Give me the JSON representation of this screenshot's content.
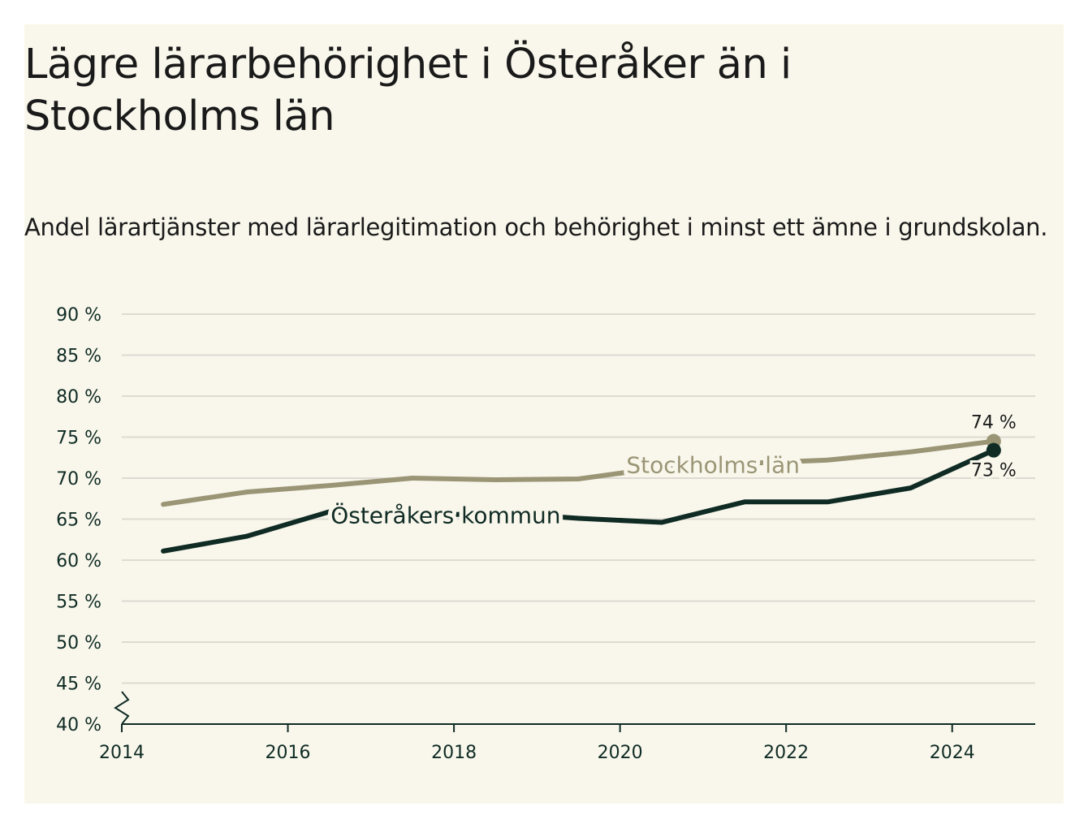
{
  "chart_data": {
    "type": "line",
    "title": "Lägre lärarbehörighet i Österåker än i Stockholms län",
    "subtitle": "Andel lärartjänster med lärarlegitimation och behörighet i minst ett ämne i grundskolan.",
    "x_ticks": [
      "2014",
      "2016",
      "2018",
      "2020",
      "2022",
      "2024"
    ],
    "y_ticks": [
      "40 %",
      "45 %",
      "50 %",
      "55 %",
      "60 %",
      "65 %",
      "70 %",
      "75 %",
      "80 %",
      "85 %",
      "90 %"
    ],
    "xlim": [
      2014,
      2025
    ],
    "ylim": [
      40,
      90
    ],
    "grid": true,
    "series": [
      {
        "name": "Stockholms län",
        "color": "#9a9575",
        "x": [
          2014.5,
          2015.5,
          2016.5,
          2017.5,
          2018.5,
          2019.5,
          2020.5,
          2021.5,
          2022.5,
          2023.5,
          2024.5
        ],
        "y": [
          66.8,
          68.3,
          69.1,
          70.0,
          69.8,
          69.9,
          71.3,
          71.8,
          72.2,
          73.2,
          74.5
        ],
        "end_label": "74 %"
      },
      {
        "name": "Österåkers kommun",
        "color": "#0f2b24",
        "x": [
          2014.5,
          2015.5,
          2016.5,
          2017.5,
          2018.5,
          2019.5,
          2020.5,
          2021.5,
          2022.5,
          2023.5,
          2024.5
        ],
        "y": [
          61.1,
          62.9,
          65.9,
          65.3,
          65.8,
          65.1,
          64.6,
          67.1,
          67.1,
          68.8,
          73.4
        ],
        "end_label": "73 %"
      }
    ]
  }
}
